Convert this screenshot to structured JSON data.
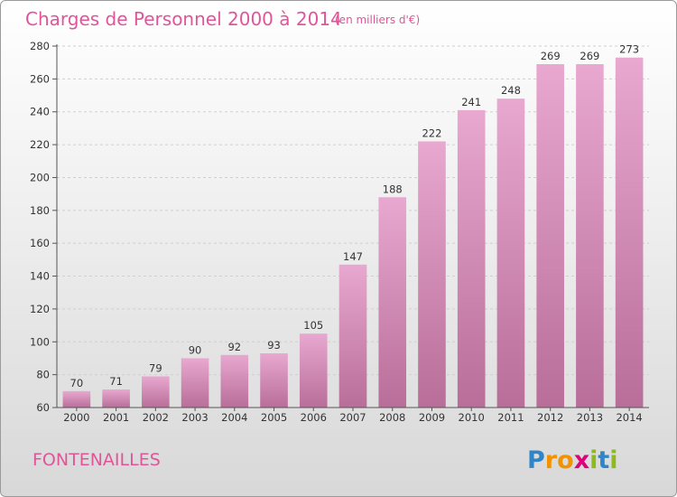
{
  "chart_data": {
    "type": "bar",
    "title": "Charges de Personnel 2000 à 2014",
    "subtitle": "(en milliers d'€)",
    "categories": [
      "2000",
      "2001",
      "2002",
      "2003",
      "2004",
      "2005",
      "2006",
      "2007",
      "2008",
      "2009",
      "2010",
      "2011",
      "2012",
      "2013",
      "2014"
    ],
    "values": [
      70,
      71,
      79,
      90,
      92,
      93,
      105,
      147,
      188,
      222,
      241,
      248,
      269,
      269,
      273
    ],
    "ylim": [
      60,
      280
    ],
    "yticks": [
      60,
      80,
      100,
      120,
      140,
      160,
      180,
      200,
      220,
      240,
      260,
      280
    ],
    "grid": true,
    "bar_color_top": "#e8a8d0",
    "bar_color_bottom": "#b86e98"
  },
  "place_name": "FONTENAILLES",
  "logo": {
    "letters": [
      "P",
      "r",
      "o",
      "x",
      "i",
      "t",
      "i"
    ],
    "colors": [
      "#2e86c8",
      "#f39200",
      "#f39200",
      "#e2007a",
      "#8dbb1f",
      "#2e86c8",
      "#8dbb1f"
    ]
  }
}
